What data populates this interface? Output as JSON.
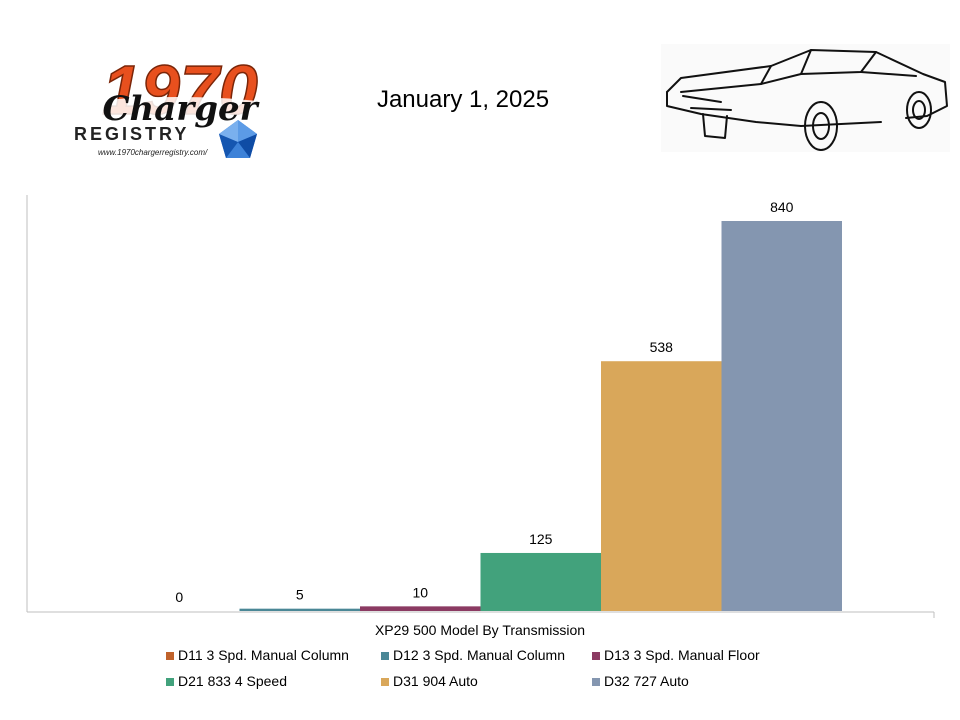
{
  "header": {
    "date": "January 1, 2025",
    "logo": {
      "year": "1970",
      "script": "Charger",
      "registry": "REGISTRY",
      "url": "www.1970chargerregistry.com/"
    }
  },
  "chart_data": {
    "type": "bar",
    "category": "XP29 500 Model By Transmission",
    "ylim": [
      0,
      1000
    ],
    "grid": false,
    "legend_position": "bottom",
    "series": [
      {
        "name": "D11 3 Spd. Manual Column",
        "value": 0,
        "color": "#c0622b"
      },
      {
        "name": "D12 3 Spd. Manual Column",
        "value": 5,
        "color": "#4a8796"
      },
      {
        "name": "D13 3 Spd. Manual Floor",
        "value": 10,
        "color": "#8b3a62"
      },
      {
        "name": "D21 833 4 Speed",
        "value": 125,
        "color": "#42a27c"
      },
      {
        "name": "D31 904 Auto",
        "value": 538,
        "color": "#d9a75a"
      },
      {
        "name": "D32 727 Auto",
        "value": 840,
        "color": "#8496b0"
      }
    ]
  }
}
